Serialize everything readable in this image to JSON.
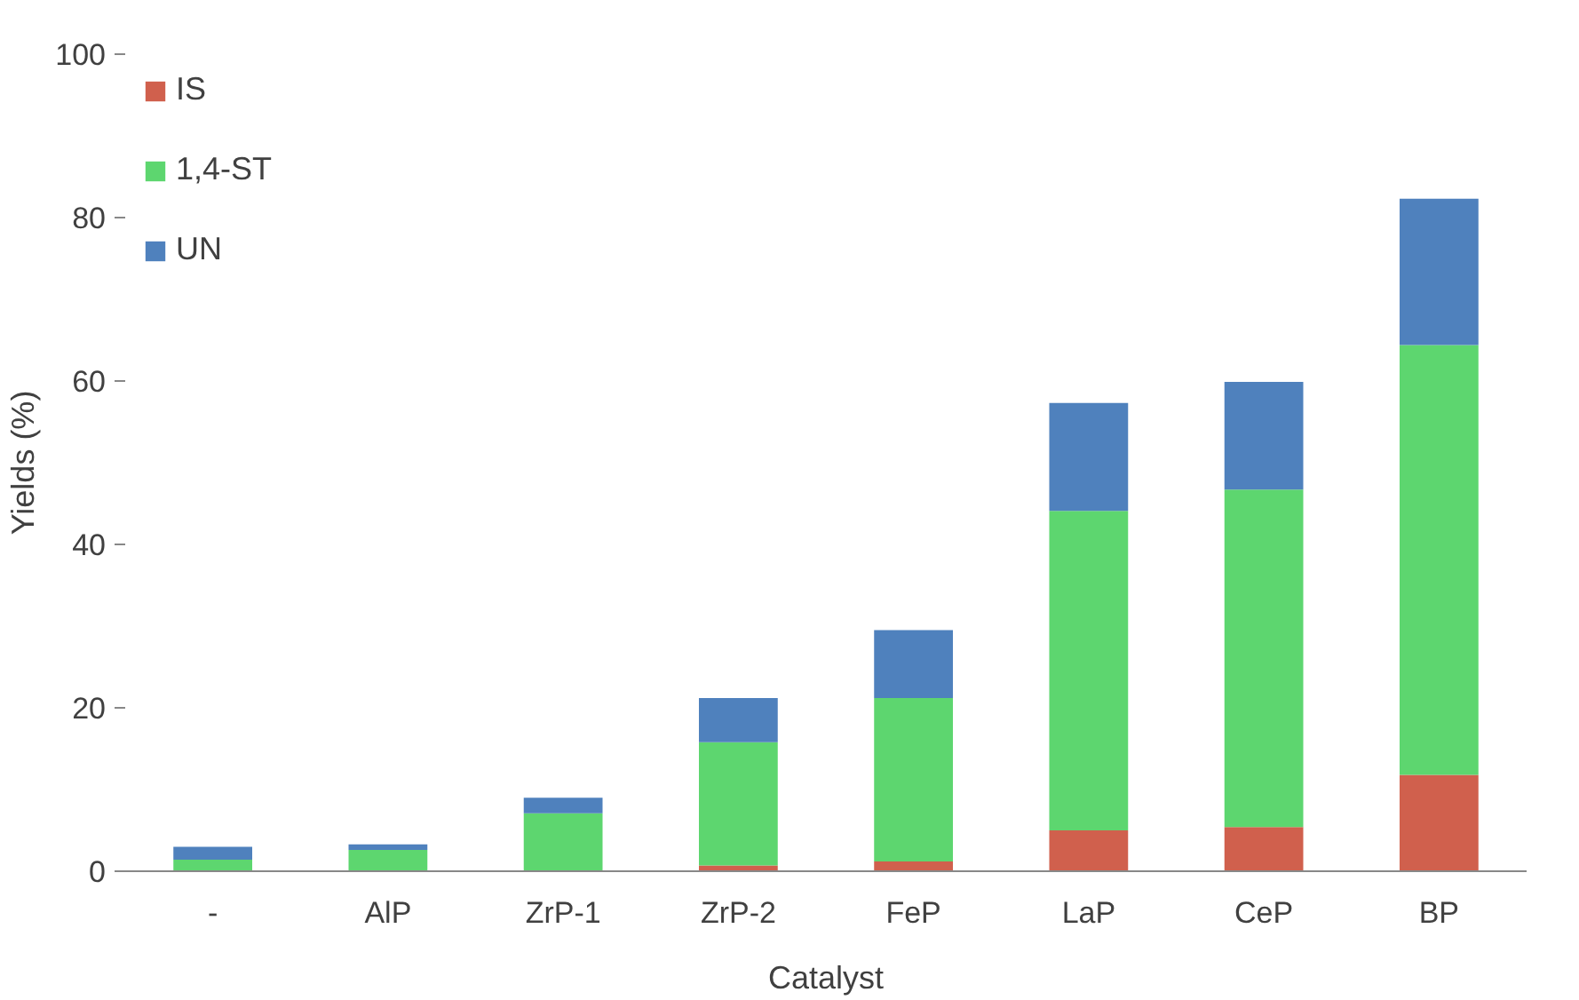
{
  "chart_data": {
    "type": "bar",
    "stacked": true,
    "xlabel": "Catalyst",
    "ylabel": "Yields (%)",
    "categories": [
      "-",
      "AlP",
      "ZrP-1",
      "ZrP-2",
      "FeP",
      "LaP",
      "CeP",
      "BP"
    ],
    "series": [
      {
        "name": "IS",
        "color": "#d0604d",
        "values": [
          0,
          0,
          0,
          0.7,
          1.2,
          5.0,
          5.4,
          11.8
        ]
      },
      {
        "name": "1,4-ST",
        "color": "#5dd66f",
        "values": [
          1.4,
          2.6,
          7.1,
          15.1,
          20.0,
          39.1,
          41.3,
          52.6
        ]
      },
      {
        "name": "UN",
        "color": "#4f81bd",
        "values": [
          1.6,
          0.7,
          1.9,
          5.4,
          8.3,
          13.2,
          13.2,
          17.9
        ]
      }
    ],
    "ylim": [
      0,
      100
    ],
    "yticks": [
      0,
      20,
      40,
      60,
      80,
      100
    ],
    "grid": false,
    "legend": "top left"
  }
}
